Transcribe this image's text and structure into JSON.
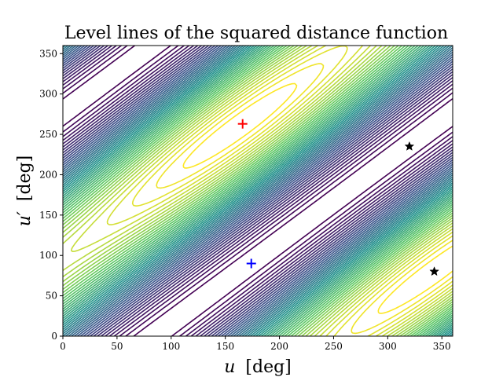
{
  "chart_data": {
    "type": "contour",
    "title": "Level lines of the squared distance function",
    "xlabel": {
      "symbol": "u",
      "unit": "[deg]"
    },
    "ylabel": {
      "symbol": "u′",
      "unit": "[deg]"
    },
    "xlim": [
      0,
      360
    ],
    "ylim": [
      0,
      360
    ],
    "xticks": [
      "0",
      "50",
      "100",
      "150",
      "200",
      "250",
      "300",
      "350"
    ],
    "yticks": [
      "0",
      "50",
      "100",
      "150",
      "200",
      "250",
      "300",
      "350"
    ],
    "grid": false,
    "colormap": [
      "#440154",
      "#3b528b",
      "#21918c",
      "#5ec962",
      "#fde725"
    ],
    "markers": [
      {
        "name": "red-plus",
        "shape": "plus",
        "color": "#ff0000",
        "x": 166,
        "y": 263
      },
      {
        "name": "blue-plus",
        "shape": "plus",
        "color": "#0000ff",
        "x": 174,
        "y": 90
      },
      {
        "name": "black-star-upper",
        "shape": "star",
        "color": "#000000",
        "x": 320,
        "y": 235
      },
      {
        "name": "black-star-lower",
        "shape": "star",
        "color": "#000000",
        "x": 343,
        "y": 80
      }
    ]
  }
}
